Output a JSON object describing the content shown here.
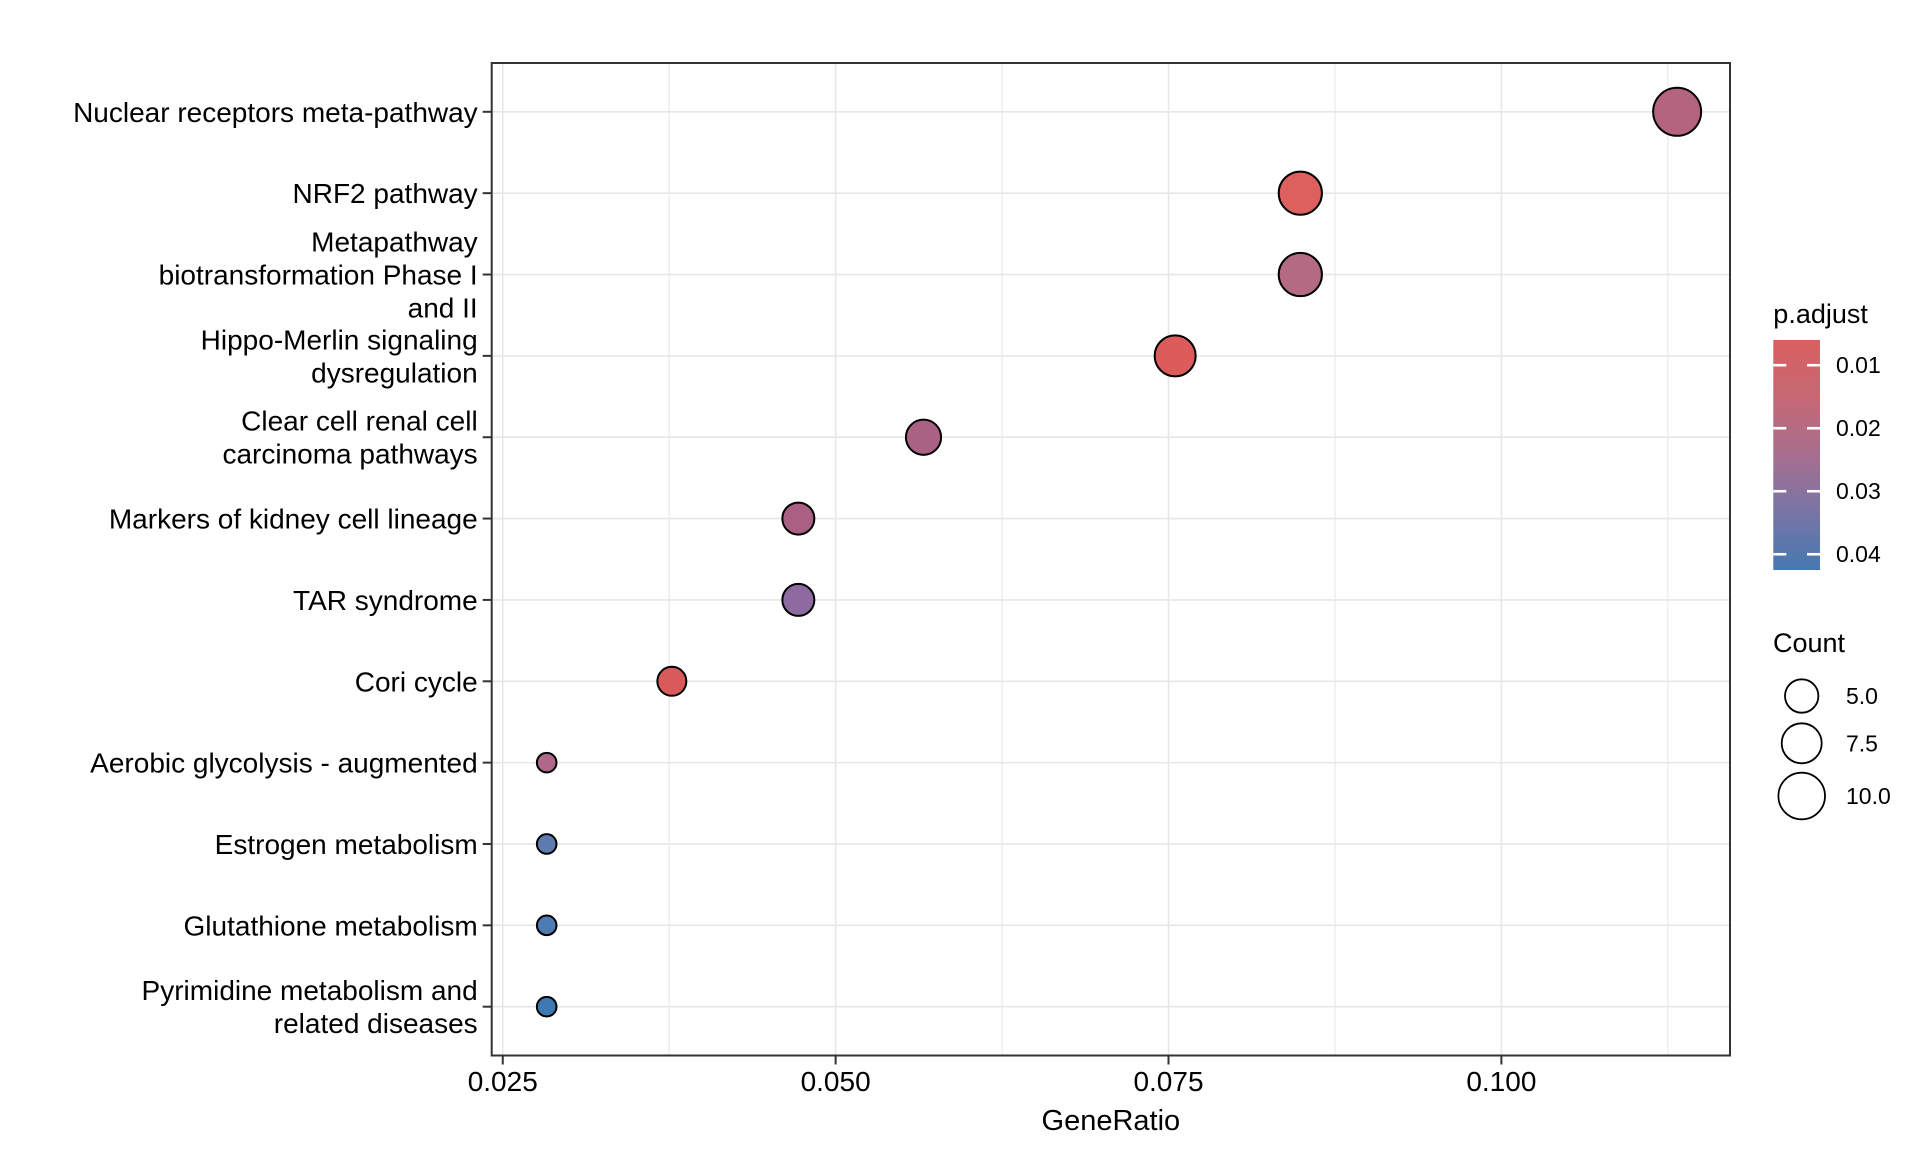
{
  "chart_data": {
    "type": "scatter",
    "subtype": "enrichment-dotplot",
    "title": "",
    "xlabel": "GeneRatio",
    "ylabel": "",
    "x_domain": [
      0.02417,
      0.11717
    ],
    "x_ticks": [
      0.025,
      0.05,
      0.075,
      0.1
    ],
    "x_tick_labels": [
      "0.025",
      "0.050",
      "0.075",
      "0.100"
    ],
    "x_minor_ticks": [
      0.0375,
      0.0625,
      0.0875,
      0.1125
    ],
    "grid": true,
    "categories": [
      {
        "name": "Nuclear receptors meta-pathway",
        "lines": [
          "Nuclear receptors meta-pathway"
        ]
      },
      {
        "name": "NRF2 pathway",
        "lines": [
          "NRF2 pathway"
        ]
      },
      {
        "name": "Metapathway biotransformation Phase I and II",
        "lines": [
          "Metapathway",
          "biotransformation Phase I",
          "and II"
        ]
      },
      {
        "name": "Hippo-Merlin signaling dysregulation",
        "lines": [
          "Hippo-Merlin signaling",
          "dysregulation"
        ]
      },
      {
        "name": "Clear cell renal cell carcinoma pathways",
        "lines": [
          "Clear cell renal cell",
          "carcinoma pathways"
        ]
      },
      {
        "name": "Markers of kidney cell lineage",
        "lines": [
          "Markers of kidney cell lineage"
        ]
      },
      {
        "name": "TAR syndrome",
        "lines": [
          "TAR syndrome"
        ]
      },
      {
        "name": "Cori cycle",
        "lines": [
          "Cori cycle"
        ]
      },
      {
        "name": "Aerobic glycolysis - augmented",
        "lines": [
          "Aerobic glycolysis - augmented"
        ]
      },
      {
        "name": "Estrogen metabolism",
        "lines": [
          "Estrogen metabolism"
        ]
      },
      {
        "name": "Glutathione metabolism",
        "lines": [
          "Glutathione metabolism"
        ]
      },
      {
        "name": "Pyrimidine metabolism and related diseases",
        "lines": [
          "Pyrimidine metabolism and",
          "related diseases"
        ]
      }
    ],
    "points": [
      {
        "pathway": "Nuclear receptors meta-pathway",
        "gene_ratio": 0.1132,
        "count": 12,
        "p_adjust": 0.021,
        "color": "#b5647f"
      },
      {
        "pathway": "NRF2 pathway",
        "gene_ratio": 0.0849,
        "count": 9,
        "p_adjust": 0.008,
        "color": "#dd5f5e"
      },
      {
        "pathway": "Metapathway biotransformation Phase I and II",
        "gene_ratio": 0.0849,
        "count": 9,
        "p_adjust": 0.021,
        "color": "#b56a83"
      },
      {
        "pathway": "Hippo-Merlin signaling dysregulation",
        "gene_ratio": 0.0755,
        "count": 8,
        "p_adjust": 0.008,
        "color": "#dc5c5c"
      },
      {
        "pathway": "Clear cell renal cell carcinoma pathways",
        "gene_ratio": 0.0566,
        "count": 6,
        "p_adjust": 0.024,
        "color": "#a96184"
      },
      {
        "pathway": "Markers of kidney cell lineage",
        "gene_ratio": 0.0472,
        "count": 5,
        "p_adjust": 0.024,
        "color": "#aa6083"
      },
      {
        "pathway": "TAR syndrome",
        "gene_ratio": 0.0472,
        "count": 5,
        "p_adjust": 0.03,
        "color": "#8d6ba0"
      },
      {
        "pathway": "Cori cycle",
        "gene_ratio": 0.0377,
        "count": 4,
        "p_adjust": 0.008,
        "color": "#d95a5b"
      },
      {
        "pathway": "Aerobic glycolysis - augmented",
        "gene_ratio": 0.0283,
        "count": 3,
        "p_adjust": 0.022,
        "color": "#b0688a"
      },
      {
        "pathway": "Estrogen metabolism",
        "gene_ratio": 0.0283,
        "count": 3,
        "p_adjust": 0.037,
        "color": "#5e7bb1"
      },
      {
        "pathway": "Glutathione metabolism",
        "gene_ratio": 0.0283,
        "count": 3,
        "p_adjust": 0.04,
        "color": "#4d7cb3"
      },
      {
        "pathway": "Pyrimidine metabolism and related diseases",
        "gene_ratio": 0.0283,
        "count": 3,
        "p_adjust": 0.042,
        "color": "#3e79b4"
      }
    ],
    "legend_color": {
      "title": "p.adjust",
      "tick_labels": [
        "0.01",
        "0.02",
        "0.03",
        "0.04"
      ],
      "tick_values": [
        0.01,
        0.02,
        0.03,
        0.04
      ],
      "domain": [
        0.006,
        0.0425
      ],
      "gradient_stops": [
        {
          "offset": 0.0,
          "color": "#d96060"
        },
        {
          "offset": 0.25,
          "color": "#c56873"
        },
        {
          "offset": 0.5,
          "color": "#a86e8f"
        },
        {
          "offset": 0.72,
          "color": "#7e74a2"
        },
        {
          "offset": 1.0,
          "color": "#4579b1"
        }
      ],
      "position": "right"
    },
    "legend_size": {
      "title": "Count",
      "items": [
        {
          "label": "5.0",
          "value": 5.0
        },
        {
          "label": "7.5",
          "value": 7.5
        },
        {
          "label": "10.0",
          "value": 10.0
        }
      ],
      "position": "right"
    },
    "colors": {
      "panel_background": "#ffffff",
      "panel_border": "#333333",
      "gridline": "#e7e7e7",
      "tick": "#333333",
      "text": "#000000",
      "bubble_stroke": "#000000",
      "legend_tick_dash": "#ffffff"
    }
  }
}
